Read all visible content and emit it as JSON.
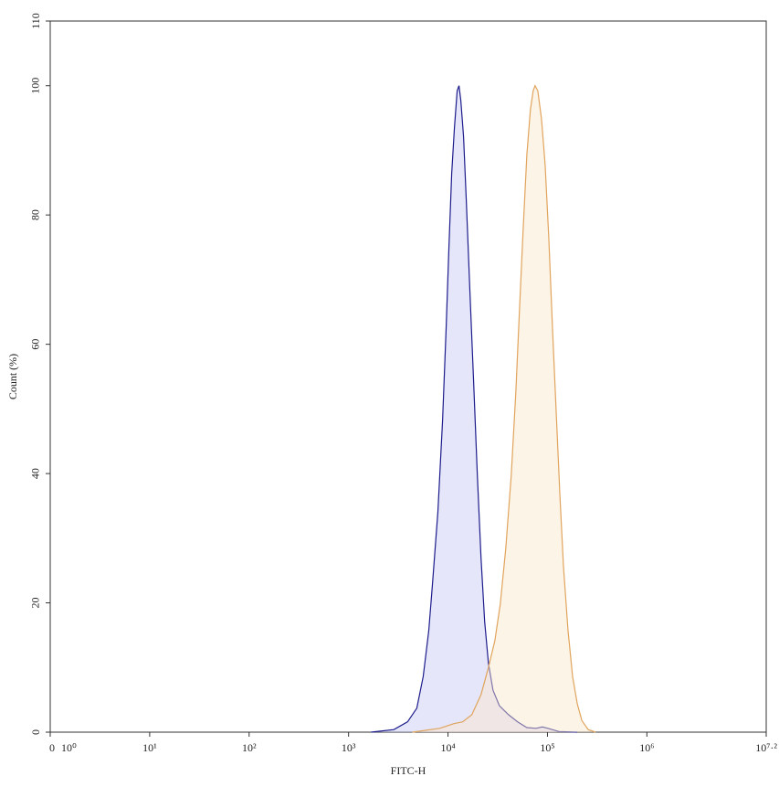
{
  "chart_data": {
    "type": "histogram-overlay",
    "x_label": "FITC-H",
    "y_label": "Count (%)",
    "x_scale": "log",
    "xlim": [
      1,
      15848932
    ],
    "zero_label": "0",
    "xticks": [
      {
        "value": 1,
        "label": "10⁰"
      },
      {
        "value": 10,
        "label": "10¹"
      },
      {
        "value": 100,
        "label": "10²"
      },
      {
        "value": 1000,
        "label": "10³"
      },
      {
        "value": 10000,
        "label": "10⁴"
      },
      {
        "value": 100000,
        "label": "10⁵"
      },
      {
        "value": 1000000,
        "label": "10⁶"
      },
      {
        "value": 15848932,
        "label": "10⁷·²"
      }
    ],
    "ylim": [
      0,
      110
    ],
    "yticks": [
      0,
      20,
      40,
      60,
      80,
      100,
      110
    ],
    "series": [
      {
        "color": "#1c1c8c",
        "fill": "#c8c8f4",
        "x": [
          1683,
          2858,
          3925,
          4853,
          5632,
          6400,
          6966,
          7922,
          8810,
          9584,
          10215,
          10886,
          11604,
          12365,
          12904,
          13460,
          14350,
          15280,
          16640,
          18120,
          19720,
          21480,
          23390,
          25470,
          28320,
          32830,
          40600,
          50150,
          62060,
          76740,
          88950,
          101100,
          130400,
          199500
        ],
        "values": [
          0,
          0.4,
          1.6,
          3.7,
          8.6,
          15.7,
          22.8,
          34.1,
          48.2,
          62.4,
          75.1,
          86.4,
          93.5,
          99.2,
          100,
          97.7,
          92.1,
          82.2,
          68.0,
          53.9,
          39.7,
          27.0,
          17.1,
          10.7,
          6.5,
          4.1,
          2.7,
          1.6,
          0.7,
          0.6,
          0.8,
          0.6,
          0.1,
          0
        ]
      },
      {
        "color": "#e0a45c",
        "fill": "#fbe6cc",
        "x": [
          4378,
          8260,
          11360,
          14040,
          17370,
          21480,
          25470,
          29540,
          33520,
          38080,
          43250,
          48100,
          52360,
          57000,
          62060,
          67470,
          71900,
          75130,
          80000,
          87100,
          94800,
          103200,
          112400,
          122400,
          133100,
          144900,
          161100,
          179100,
          199500,
          221800,
          257200,
          304800
        ],
        "values": [
          0,
          0.6,
          1.3,
          1.6,
          2.7,
          5.8,
          10.0,
          14.1,
          19.8,
          28.4,
          39.7,
          52.5,
          65.2,
          77.9,
          89.3,
          96.3,
          99.2,
          100,
          99.2,
          94.9,
          87.8,
          76.5,
          62.4,
          49.6,
          36.9,
          25.6,
          15.7,
          8.6,
          4.4,
          1.8,
          0.4,
          0
        ]
      }
    ]
  }
}
